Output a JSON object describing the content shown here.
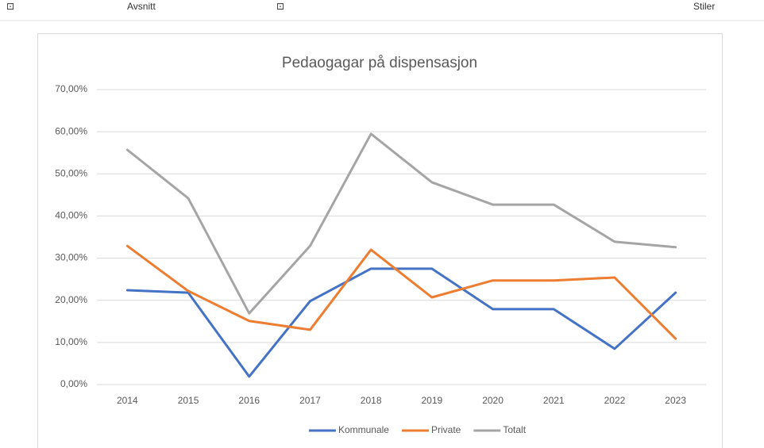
{
  "ribbon": [
    "Avsnitt",
    "Stiler"
  ],
  "chart_data": {
    "type": "line",
    "title": "Pedaogagar på dispensasjon",
    "categories": [
      "2014",
      "2015",
      "2016",
      "2017",
      "2018",
      "2019",
      "2020",
      "2021",
      "2022",
      "2023"
    ],
    "series": [
      {
        "name": "Kommunale",
        "color": "#4472c4",
        "values": [
          22.4,
          21.8,
          1.9,
          19.8,
          27.5,
          27.5,
          17.9,
          17.9,
          8.5,
          21.8
        ]
      },
      {
        "name": "Private",
        "color": "#ed7d31",
        "values": [
          32.9,
          22.2,
          15.1,
          13.0,
          32.0,
          20.7,
          24.7,
          24.7,
          25.4,
          10.9
        ]
      },
      {
        "name": "Totalt",
        "color": "#a5a5a5",
        "values": [
          55.7,
          44.2,
          16.9,
          32.9,
          59.5,
          48.0,
          42.7,
          42.7,
          33.9,
          32.6
        ]
      }
    ],
    "ylim": [
      0,
      70
    ],
    "yticks": [
      {
        "value": 0,
        "label": "0,00%"
      },
      {
        "value": 10,
        "label": "10,00%"
      },
      {
        "value": 20,
        "label": "20,00%"
      },
      {
        "value": 30,
        "label": "30,00%"
      },
      {
        "value": 40,
        "label": "40,00%"
      },
      {
        "value": 50,
        "label": "50,00%"
      },
      {
        "value": 60,
        "label": "60,00%"
      },
      {
        "value": 70,
        "label": "70,00%"
      }
    ],
    "grid": true,
    "legend": "bottom"
  }
}
